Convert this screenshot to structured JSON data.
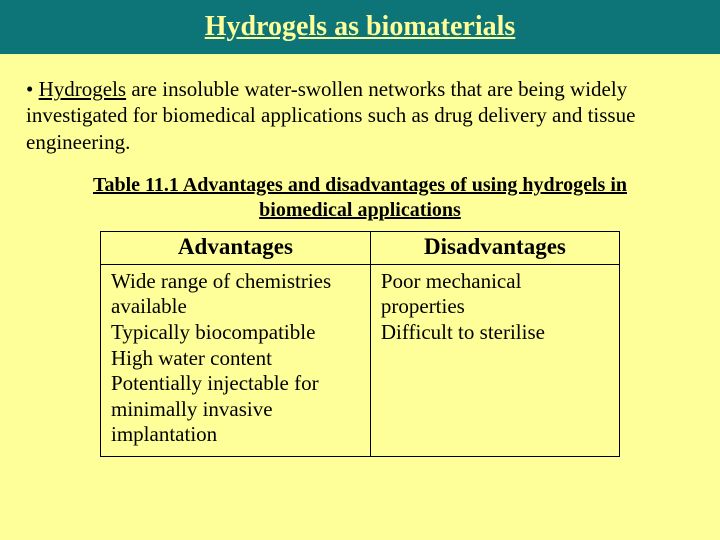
{
  "colors": {
    "slide_background": "#ffff99",
    "title_bar_background": "#0d7477",
    "title_text": "#ffff99",
    "body_text": "#000000",
    "table_border": "#000000"
  },
  "title": "Hydrogels as biomaterials",
  "bullet": {
    "lead_underlined": "Hydrogels",
    "rest": "  are insoluble water-swollen networks that are being widely investigated for biomedical applications such as drug delivery and tissue engineering."
  },
  "table": {
    "type": "table",
    "caption_line1": "Table 11.1 Advantages and disadvantages of using hydrogels in",
    "caption_line2": "biomedical applications",
    "columns": [
      "Advantages",
      "Disadvantages"
    ],
    "column_widths_pct": [
      52,
      48
    ],
    "rows": [
      [
        "Wide range of chemistries available\nTypically biocompatible\nHigh water content\nPotentially injectable for minimally invasive implantation",
        "Poor mechanical properties\nDifficult to sterilise"
      ]
    ],
    "header_fontsize": 23,
    "cell_fontsize": 21,
    "border_width": 1.5
  },
  "typography": {
    "title_fontsize": 28,
    "title_weight": "bold",
    "body_fontsize": 21,
    "caption_fontsize": 20,
    "font_family": "Times New Roman"
  }
}
